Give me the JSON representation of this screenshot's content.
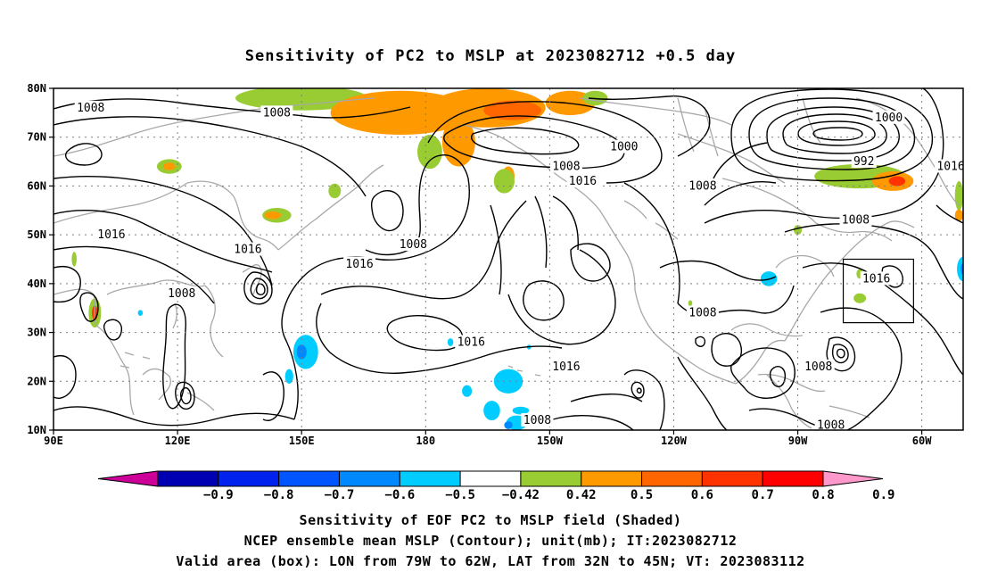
{
  "title": "Sensitivity of PC2 to MSLP at 2023082712 +0.5 day",
  "map": {
    "lon_ticks": [
      "90E",
      "120E",
      "150E",
      "180",
      "150W",
      "120W",
      "90W",
      "60W"
    ],
    "lat_ticks": [
      "80N",
      "70N",
      "60N",
      "50N",
      "40N",
      "30N",
      "20N",
      "10N"
    ],
    "extent": {
      "lon_min_deg_east": 90,
      "lon_max_deg_east": 310,
      "lat_min": 10,
      "lat_max": 80
    },
    "gridlines": true,
    "contour_labels": [
      {
        "text": "1008",
        "lon": 99,
        "lat": 76
      },
      {
        "text": "1008",
        "lon": 144,
        "lat": 75
      },
      {
        "text": "1000",
        "lon": 228,
        "lat": 68
      },
      {
        "text": "1008",
        "lon": 214,
        "lat": 64
      },
      {
        "text": "1016",
        "lon": 218,
        "lat": 61
      },
      {
        "text": "1008",
        "lon": 247,
        "lat": 60
      },
      {
        "text": "1000",
        "lon": 292,
        "lat": 74
      },
      {
        "text": "992",
        "lon": 286,
        "lat": 65
      },
      {
        "text": "1016",
        "lon": 307,
        "lat": 64
      },
      {
        "text": "1008",
        "lon": 284,
        "lat": 53
      },
      {
        "text": "1016",
        "lon": 104,
        "lat": 50
      },
      {
        "text": "1016",
        "lon": 137,
        "lat": 47
      },
      {
        "text": "1008",
        "lon": 177,
        "lat": 48
      },
      {
        "text": "1016",
        "lon": 164,
        "lat": 44
      },
      {
        "text": "1008",
        "lon": 121,
        "lat": 38
      },
      {
        "text": "1016",
        "lon": 289,
        "lat": 41
      },
      {
        "text": "1008",
        "lon": 247,
        "lat": 34
      },
      {
        "text": "1016",
        "lon": 191,
        "lat": 28
      },
      {
        "text": "1016",
        "lon": 214,
        "lat": 23
      },
      {
        "text": "1008",
        "lon": 275,
        "lat": 23
      },
      {
        "text": "1008",
        "lon": 207,
        "lat": 12
      },
      {
        "text": "1008",
        "lon": 278,
        "lat": 11
      }
    ],
    "valid_box": {
      "lon_w": 281,
      "lon_e": 298,
      "lat_s": 32,
      "lat_n": 45
    },
    "shaded_patches": [
      {
        "lon": 150,
        "lat": 78,
        "rx": 16,
        "ry": 2.5,
        "color": "#99cc33"
      },
      {
        "lon": 174,
        "lat": 75,
        "rx": 17,
        "ry": 4.5,
        "color": "#ff9900"
      },
      {
        "lon": 195,
        "lat": 76,
        "rx": 14,
        "ry": 4,
        "color": "#ff9900"
      },
      {
        "lon": 201,
        "lat": 75.5,
        "rx": 7,
        "ry": 2,
        "color": "#ff6600"
      },
      {
        "lon": 215,
        "lat": 77,
        "rx": 6,
        "ry": 2.5,
        "color": "#ff9900"
      },
      {
        "lon": 188,
        "lat": 69,
        "rx": 4,
        "ry": 5,
        "color": "#ff9900"
      },
      {
        "lon": 181,
        "lat": 67,
        "rx": 3,
        "ry": 3.5,
        "color": "#99cc33"
      },
      {
        "lon": 221,
        "lat": 78,
        "rx": 3,
        "ry": 1.5,
        "color": "#99cc33"
      },
      {
        "lon": 200,
        "lat": 62,
        "rx": 1.5,
        "ry": 2,
        "color": "#ff9900"
      },
      {
        "lon": 199,
        "lat": 61,
        "rx": 2.5,
        "ry": 2.5,
        "color": "#99cc33"
      },
      {
        "lon": 285,
        "lat": 62,
        "rx": 11,
        "ry": 2.5,
        "color": "#99cc33"
      },
      {
        "lon": 293,
        "lat": 61,
        "rx": 5,
        "ry": 2,
        "color": "#ff9900"
      },
      {
        "lon": 294,
        "lat": 61,
        "rx": 2,
        "ry": 1,
        "color": "#ff3300"
      },
      {
        "lon": 309,
        "lat": 58,
        "rx": 1,
        "ry": 3,
        "color": "#99cc33"
      },
      {
        "lon": 309,
        "lat": 54,
        "rx": 1,
        "ry": 1.2,
        "color": "#ff9900"
      },
      {
        "lon": 270,
        "lat": 51,
        "rx": 1,
        "ry": 1,
        "color": "#99cc33"
      },
      {
        "lon": 118,
        "lat": 64,
        "rx": 3,
        "ry": 1.5,
        "color": "#99cc33"
      },
      {
        "lon": 118,
        "lat": 64,
        "rx": 1.5,
        "ry": 0.8,
        "color": "#ff9900"
      },
      {
        "lon": 144,
        "lat": 54,
        "rx": 3.5,
        "ry": 1.5,
        "color": "#99cc33"
      },
      {
        "lon": 143,
        "lat": 54,
        "rx": 2,
        "ry": 0.8,
        "color": "#ff9900"
      },
      {
        "lon": 158,
        "lat": 59,
        "rx": 1.5,
        "ry": 1.5,
        "color": "#99cc33"
      },
      {
        "lon": 100,
        "lat": 34,
        "rx": 1.5,
        "ry": 3,
        "color": "#99cc33"
      },
      {
        "lon": 100,
        "lat": 34,
        "rx": 0.7,
        "ry": 1.5,
        "color": "#ff3300"
      },
      {
        "lon": 285,
        "lat": 37,
        "rx": 1.5,
        "ry": 1,
        "color": "#99cc33"
      },
      {
        "lon": 244,
        "lat": 36,
        "rx": 0.5,
        "ry": 0.6,
        "color": "#99cc33"
      },
      {
        "lon": 285,
        "lat": 42,
        "rx": 0.8,
        "ry": 1,
        "color": "#99cc33"
      },
      {
        "lon": 95,
        "lat": 45,
        "rx": 0.6,
        "ry": 1.5,
        "color": "#99cc33"
      },
      {
        "lon": 151,
        "lat": 26,
        "rx": 3,
        "ry": 3.5,
        "color": "#00ccff"
      },
      {
        "lon": 150,
        "lat": 26,
        "rx": 1.2,
        "ry": 1.5,
        "color": "#0088ff"
      },
      {
        "lon": 147,
        "lat": 21,
        "rx": 1,
        "ry": 1.5,
        "color": "#00ccff"
      },
      {
        "lon": 186,
        "lat": 28,
        "rx": 0.7,
        "ry": 0.8,
        "color": "#00ccff"
      },
      {
        "lon": 200,
        "lat": 20,
        "rx": 3.5,
        "ry": 2.5,
        "color": "#00ccff"
      },
      {
        "lon": 190,
        "lat": 18,
        "rx": 1.2,
        "ry": 1.2,
        "color": "#00ccff"
      },
      {
        "lon": 196,
        "lat": 14,
        "rx": 2,
        "ry": 2,
        "color": "#00ccff"
      },
      {
        "lon": 202,
        "lat": 11.5,
        "rx": 2.5,
        "ry": 1.5,
        "color": "#00ccff"
      },
      {
        "lon": 200,
        "lat": 11,
        "rx": 1,
        "ry": 0.8,
        "color": "#0088ff"
      },
      {
        "lon": 203,
        "lat": 14,
        "rx": 2,
        "ry": 0.8,
        "color": "#00ccff"
      },
      {
        "lon": 263,
        "lat": 41,
        "rx": 2,
        "ry": 1.5,
        "color": "#00ccff"
      },
      {
        "lon": 310,
        "lat": 43,
        "rx": 1.5,
        "ry": 2.5,
        "color": "#00ccff"
      },
      {
        "lon": 310,
        "lat": 43,
        "rx": 0.6,
        "ry": 1.2,
        "color": "#0088ff"
      },
      {
        "lon": 111,
        "lat": 34,
        "rx": 0.6,
        "ry": 0.6,
        "color": "#00ccff"
      },
      {
        "lon": 205,
        "lat": 27,
        "rx": 0.5,
        "ry": 0.5,
        "color": "#00ccff"
      }
    ]
  },
  "colorbar": {
    "colors": [
      "#cc0099",
      "#0000b3",
      "#0022ee",
      "#0055ff",
      "#0088ff",
      "#00ccff",
      "#ffffff",
      "#99cc33",
      "#ff9900",
      "#ff6600",
      "#ff3300",
      "#ff0000",
      "#ff99cc"
    ],
    "labels": [
      "−0.9",
      "−0.8",
      "−0.7",
      "−0.6",
      "−0.5",
      "−0.42",
      "0.42",
      "0.5",
      "0.6",
      "0.7",
      "0.8",
      "0.9"
    ]
  },
  "caption": {
    "line1": "Sensitivity of EOF PC2 to MSLP field (Shaded)",
    "line2": "NCEP ensemble mean MSLP (Contour); unit(mb); IT:2023082712",
    "line3": "Valid area (box): LON from 79W to 62W, LAT from 32N to 45N; VT: 2023083112"
  }
}
